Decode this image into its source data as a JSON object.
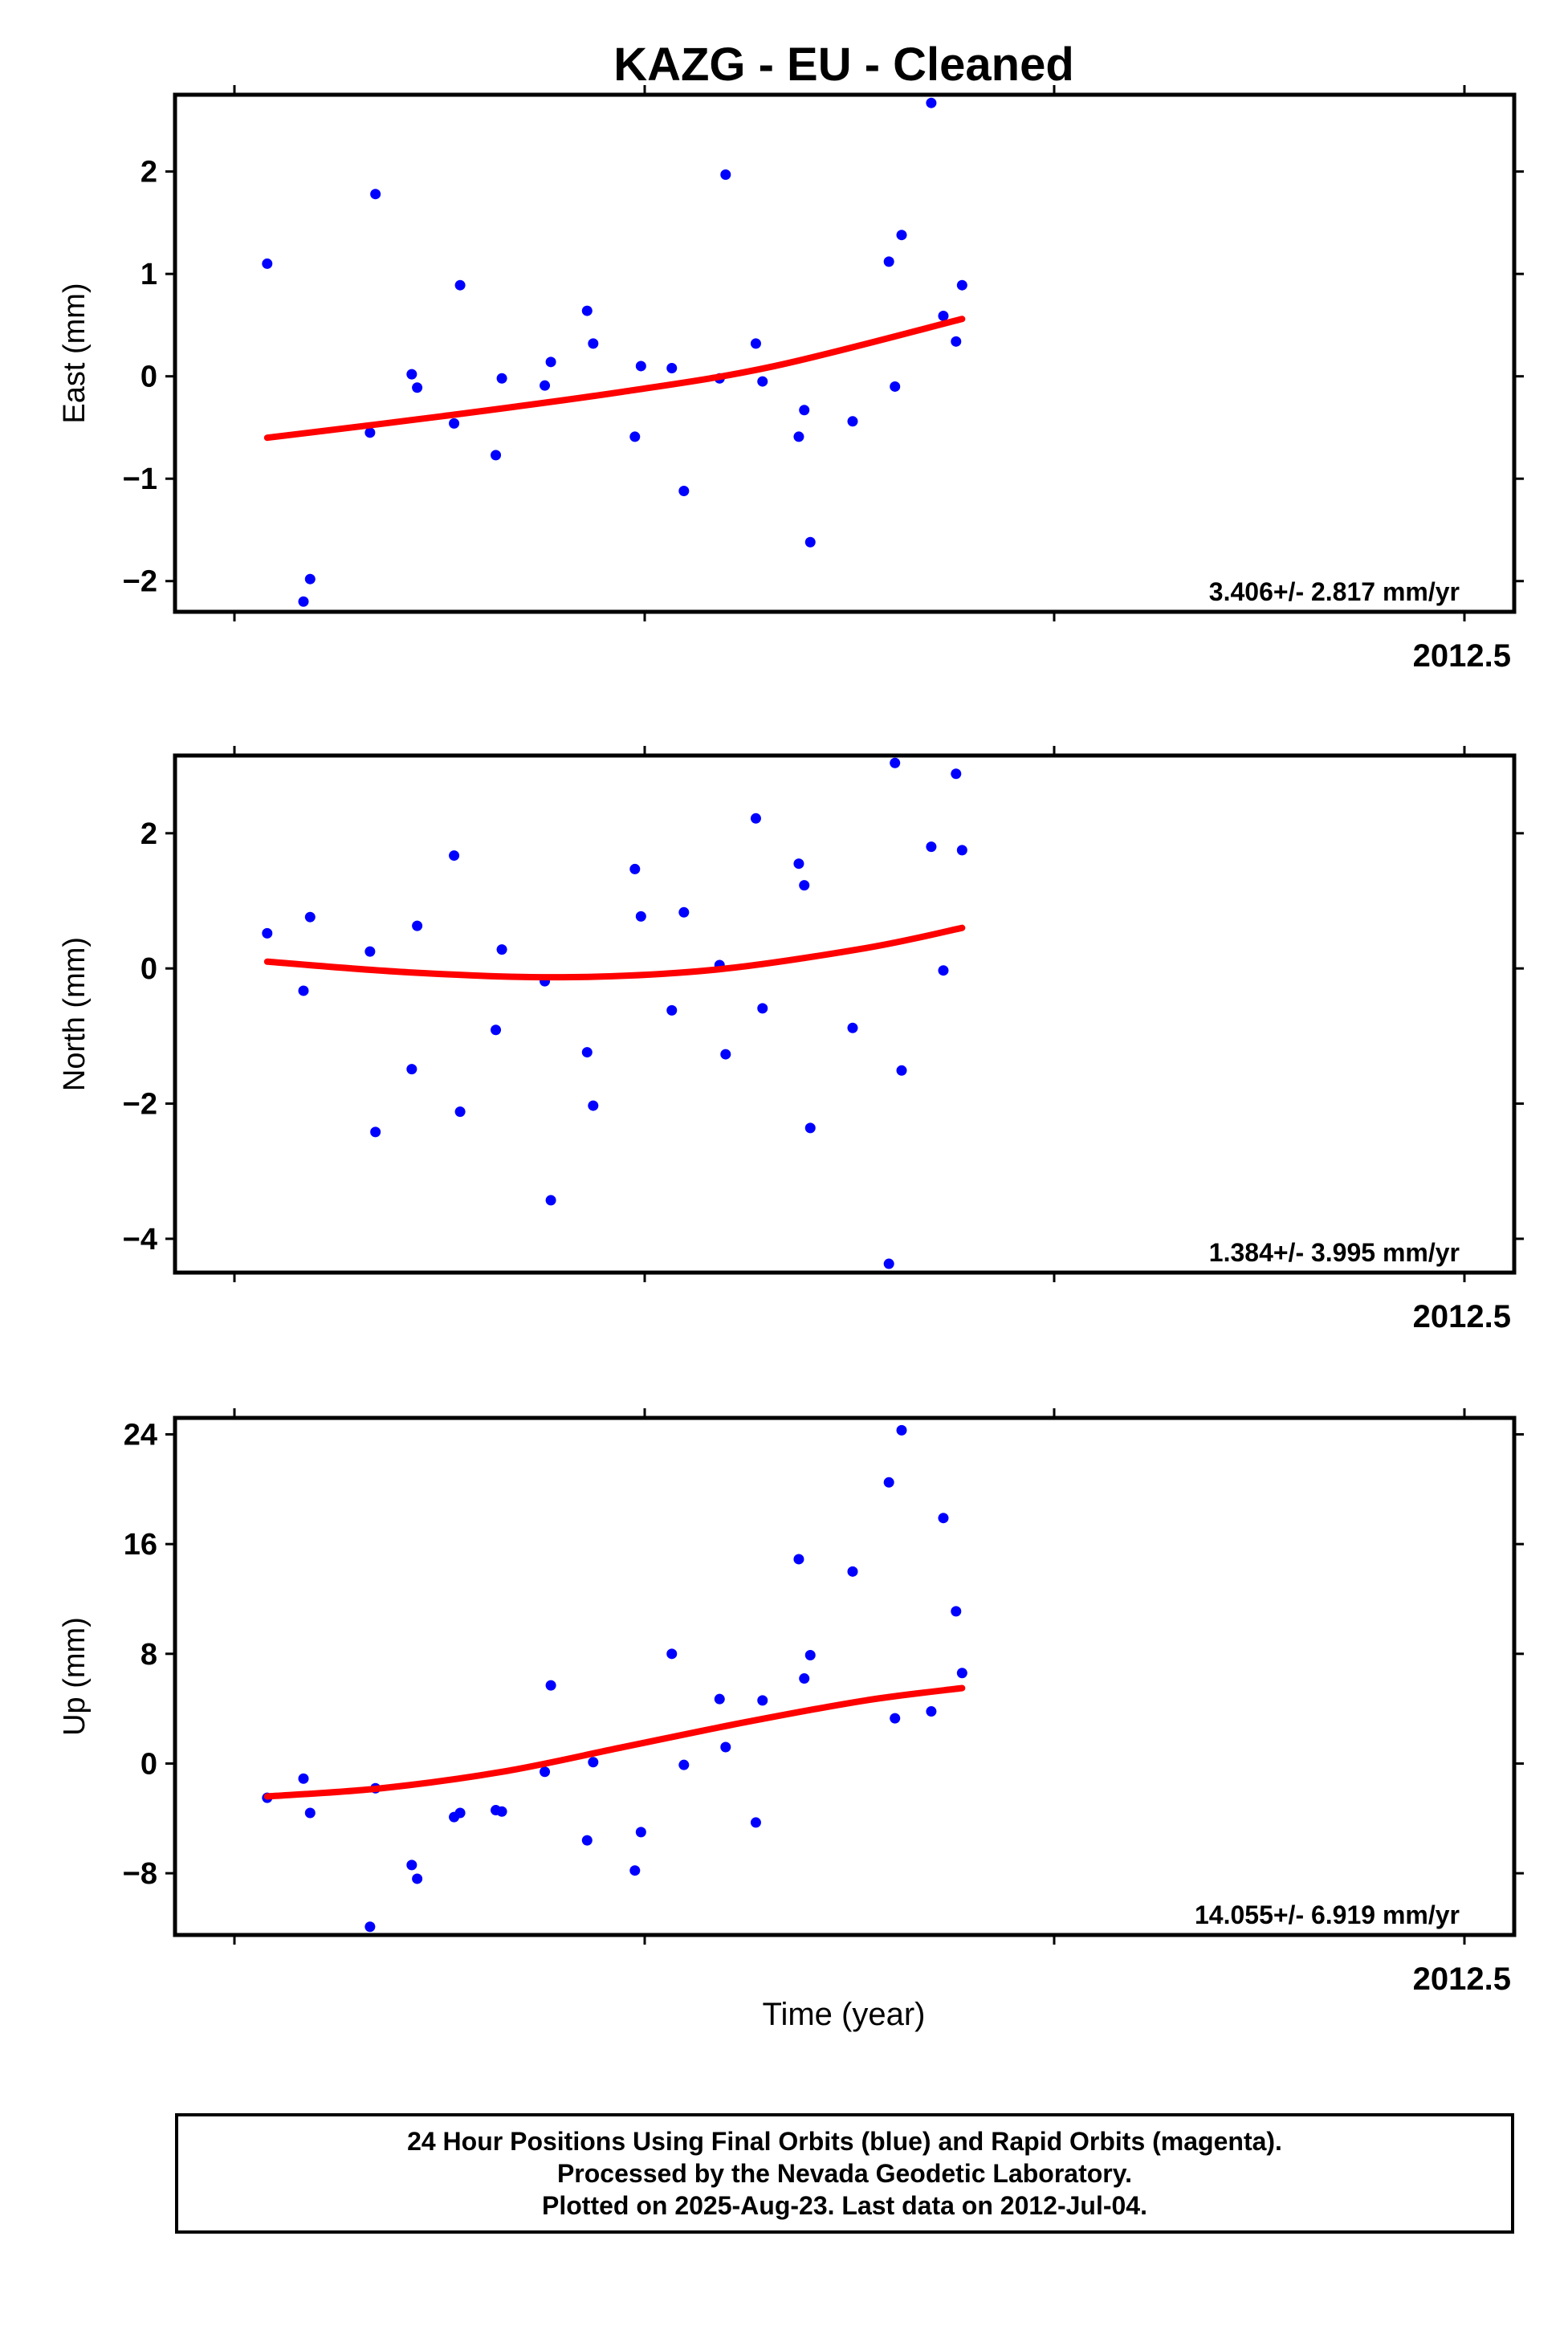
{
  "title": "KAZG  - EU - Cleaned",
  "x_axis_label": "Time (year)",
  "footer": {
    "line1": "24 Hour Positions Using Final Orbits (blue) and Rapid Orbits (magenta).",
    "line2": "Processed by the Nevada Geodetic Laboratory.",
    "line3": "Plotted on 2025-Aug-23. Last data on 2012-Jul-04."
  },
  "colors": {
    "final_orbits": "#0000ff",
    "fit_line": "#ff0000",
    "frame": "#000000"
  },
  "chart_data": [
    {
      "type": "scatter",
      "ylabel": "East (mm)",
      "ylim": [
        -2.3,
        2.75
      ],
      "yticks": [
        -2,
        -1,
        0,
        1,
        2
      ],
      "xlim": [
        2011.96,
        2012.565
      ],
      "x_tick_label": "2012.5",
      "rate_text": "3.406+/- 2.817 mm/yr",
      "points": [
        [
          1.1,
          1.1
        ],
        [
          7.1,
          -2.2
        ],
        [
          8.2,
          -1.98
        ],
        [
          18.1,
          -0.55
        ],
        [
          19.0,
          1.78
        ],
        [
          25.0,
          0.02
        ],
        [
          25.9,
          -0.11
        ],
        [
          32.0,
          -0.46
        ],
        [
          33.0,
          0.89
        ],
        [
          38.9,
          -0.77
        ],
        [
          39.9,
          -0.02
        ],
        [
          47.0,
          -0.09
        ],
        [
          48.0,
          0.14
        ],
        [
          54.0,
          0.64
        ],
        [
          55.0,
          0.32
        ],
        [
          61.9,
          -0.59
        ],
        [
          62.9,
          0.1
        ],
        [
          68.0,
          0.08
        ],
        [
          70.0,
          -1.12
        ],
        [
          75.9,
          -0.02
        ],
        [
          76.9,
          1.97
        ],
        [
          81.9,
          0.32
        ],
        [
          83.0,
          -0.05
        ],
        [
          89.0,
          -0.59
        ],
        [
          89.9,
          -0.33
        ],
        [
          90.9,
          -1.62
        ],
        [
          97.9,
          -0.44
        ],
        [
          103.9,
          1.12
        ],
        [
          104.9,
          -0.1
        ],
        [
          106.0,
          1.38
        ],
        [
          110.9,
          2.67
        ],
        [
          112.9,
          0.59
        ],
        [
          115.0,
          0.34
        ],
        [
          116.0,
          0.89
        ]
      ],
      "fit": [
        [
          1.1,
          -0.6
        ],
        [
          30,
          -0.39
        ],
        [
          60,
          -0.15
        ],
        [
          85,
          0.1
        ],
        [
          116,
          0.56
        ]
      ]
    },
    {
      "type": "scatter",
      "ylabel": "North (mm)",
      "ylim": [
        -4.5,
        3.15
      ],
      "yticks": [
        -4,
        -2,
        0,
        2
      ],
      "xlim": [
        2011.96,
        2012.565
      ],
      "x_tick_label": "2012.5",
      "rate_text": "1.384+/- 3.995 mm/yr",
      "points": [
        [
          1.1,
          0.52
        ],
        [
          7.1,
          -0.33
        ],
        [
          8.2,
          0.76
        ],
        [
          18.1,
          0.25
        ],
        [
          19.0,
          -2.42
        ],
        [
          25.0,
          -1.49
        ],
        [
          25.9,
          0.63
        ],
        [
          32.0,
          1.67
        ],
        [
          33.0,
          -2.12
        ],
        [
          38.9,
          -0.91
        ],
        [
          39.9,
          0.28
        ],
        [
          47.0,
          -0.19
        ],
        [
          48.0,
          -3.43
        ],
        [
          54.0,
          -1.24
        ],
        [
          55.0,
          -2.03
        ],
        [
          61.9,
          1.47
        ],
        [
          62.9,
          0.77
        ],
        [
          68.0,
          -0.62
        ],
        [
          70.0,
          0.83
        ],
        [
          75.9,
          0.05
        ],
        [
          76.9,
          -1.27
        ],
        [
          81.9,
          2.22
        ],
        [
          83.0,
          -0.59
        ],
        [
          89.0,
          1.55
        ],
        [
          89.9,
          1.23
        ],
        [
          90.9,
          -2.36
        ],
        [
          97.9,
          -0.88
        ],
        [
          103.9,
          -4.37
        ],
        [
          104.9,
          3.04
        ],
        [
          106.0,
          -1.51
        ],
        [
          110.9,
          1.8
        ],
        [
          112.9,
          -0.03
        ],
        [
          115.0,
          2.88
        ],
        [
          116.0,
          1.75
        ]
      ],
      "fit": [
        [
          1.1,
          0.1
        ],
        [
          25,
          -0.06
        ],
        [
          50,
          -0.13
        ],
        [
          75,
          -0.02
        ],
        [
          100,
          0.3
        ],
        [
          116,
          0.6
        ]
      ]
    },
    {
      "type": "scatter",
      "ylabel": "Up (mm)",
      "ylim": [
        -12.5,
        25.2
      ],
      "yticks": [
        -8,
        0,
        8,
        16,
        24
      ],
      "xlim": [
        2011.96,
        2012.565
      ],
      "x_tick_label": "2012.5",
      "rate_text": "14.055+/- 6.919 mm/yr",
      "points": [
        [
          1.1,
          -2.5
        ],
        [
          7.1,
          -1.1
        ],
        [
          8.2,
          -3.6
        ],
        [
          18.1,
          -11.9
        ],
        [
          19.0,
          -1.8
        ],
        [
          25.0,
          -7.4
        ],
        [
          25.9,
          -8.4
        ],
        [
          32.0,
          -3.9
        ],
        [
          33.0,
          -3.6
        ],
        [
          38.9,
          -3.4
        ],
        [
          39.9,
          -3.5
        ],
        [
          47.0,
          -0.6
        ],
        [
          48.0,
          5.7
        ],
        [
          54.0,
          -5.6
        ],
        [
          55.0,
          0.1
        ],
        [
          61.9,
          -7.8
        ],
        [
          62.9,
          -5.0
        ],
        [
          68.0,
          8.0
        ],
        [
          70.0,
          -0.1
        ],
        [
          75.9,
          4.7
        ],
        [
          76.9,
          1.2
        ],
        [
          81.9,
          -4.3
        ],
        [
          83.0,
          4.6
        ],
        [
          89.0,
          14.9
        ],
        [
          89.9,
          6.2
        ],
        [
          90.9,
          7.9
        ],
        [
          97.9,
          14.0
        ],
        [
          103.9,
          20.5
        ],
        [
          104.9,
          3.3
        ],
        [
          106.0,
          24.3
        ],
        [
          110.9,
          3.8
        ],
        [
          112.9,
          17.9
        ],
        [
          115.0,
          11.1
        ],
        [
          116.0,
          6.6
        ]
      ],
      "fit": [
        [
          1.1,
          -2.4
        ],
        [
          20,
          -1.8
        ],
        [
          40,
          -0.6
        ],
        [
          60,
          1.2
        ],
        [
          80,
          3.0
        ],
        [
          100,
          4.6
        ],
        [
          116,
          5.5
        ]
      ]
    }
  ]
}
